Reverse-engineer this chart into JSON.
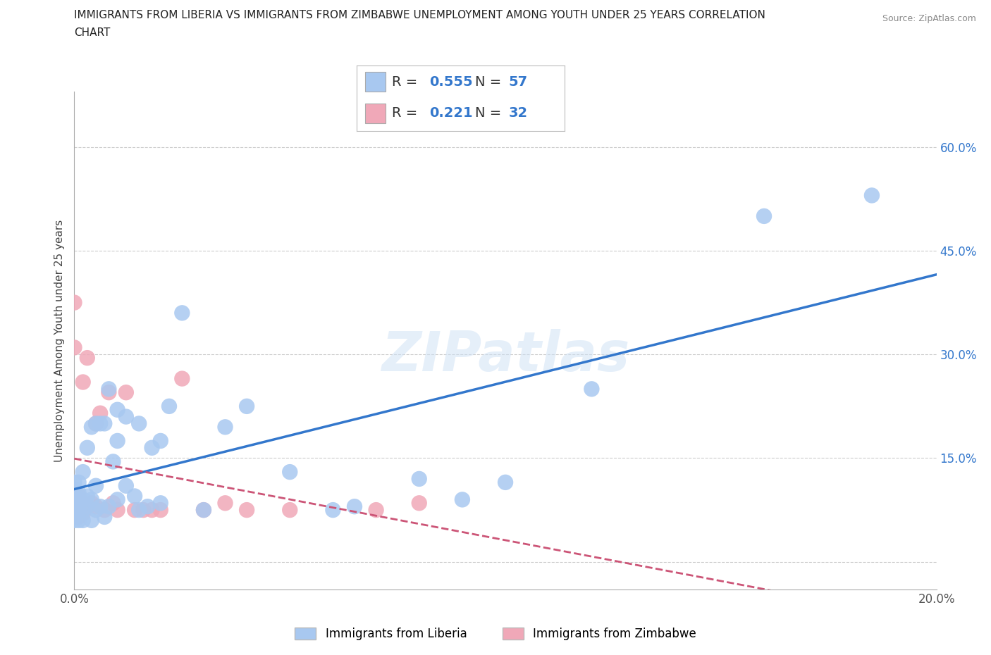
{
  "title_line1": "IMMIGRANTS FROM LIBERIA VS IMMIGRANTS FROM ZIMBABWE UNEMPLOYMENT AMONG YOUTH UNDER 25 YEARS CORRELATION",
  "title_line2": "CHART",
  "source": "Source: ZipAtlas.com",
  "ylabel": "Unemployment Among Youth under 25 years",
  "legend1_R": "0.555",
  "legend1_N": "57",
  "legend2_R": "0.221",
  "legend2_N": "32",
  "liberia_color": "#a8c8f0",
  "zimbabwe_color": "#f0a8b8",
  "liberia_line_color": "#3377cc",
  "zimbabwe_line_color": "#cc5577",
  "watermark": "ZIPatlas",
  "xlim": [
    0.0,
    0.2
  ],
  "ylim": [
    -0.04,
    0.68
  ],
  "xtick_vals": [
    0.0,
    0.05,
    0.1,
    0.15,
    0.2
  ],
  "xtick_labels": [
    "0.0%",
    "",
    "",
    "",
    "20.0%"
  ],
  "ytick_vals": [
    0.0,
    0.15,
    0.3,
    0.45,
    0.6
  ],
  "ytick_labels": [
    "",
    "15.0%",
    "30.0%",
    "45.0%",
    "60.0%"
  ],
  "liberia_x": [
    0.0,
    0.0,
    0.0,
    0.0,
    0.0,
    0.0,
    0.001,
    0.001,
    0.001,
    0.001,
    0.001,
    0.002,
    0.002,
    0.002,
    0.002,
    0.003,
    0.003,
    0.003,
    0.004,
    0.004,
    0.004,
    0.005,
    0.005,
    0.005,
    0.006,
    0.006,
    0.007,
    0.007,
    0.008,
    0.008,
    0.009,
    0.01,
    0.01,
    0.01,
    0.012,
    0.012,
    0.014,
    0.015,
    0.015,
    0.017,
    0.018,
    0.02,
    0.02,
    0.022,
    0.025,
    0.03,
    0.035,
    0.04,
    0.05,
    0.06,
    0.065,
    0.08,
    0.09,
    0.1,
    0.12,
    0.16,
    0.185
  ],
  "liberia_y": [
    0.06,
    0.075,
    0.085,
    0.095,
    0.105,
    0.115,
    0.06,
    0.075,
    0.085,
    0.1,
    0.115,
    0.06,
    0.075,
    0.09,
    0.13,
    0.08,
    0.095,
    0.165,
    0.06,
    0.09,
    0.195,
    0.075,
    0.11,
    0.2,
    0.08,
    0.2,
    0.065,
    0.2,
    0.08,
    0.25,
    0.145,
    0.09,
    0.175,
    0.22,
    0.11,
    0.21,
    0.095,
    0.075,
    0.2,
    0.08,
    0.165,
    0.085,
    0.175,
    0.225,
    0.36,
    0.075,
    0.195,
    0.225,
    0.13,
    0.075,
    0.08,
    0.12,
    0.09,
    0.115,
    0.25,
    0.5,
    0.53
  ],
  "zimbabwe_x": [
    0.0,
    0.0,
    0.0,
    0.0,
    0.0,
    0.001,
    0.001,
    0.001,
    0.002,
    0.002,
    0.003,
    0.003,
    0.004,
    0.005,
    0.005,
    0.006,
    0.007,
    0.008,
    0.009,
    0.01,
    0.012,
    0.014,
    0.016,
    0.018,
    0.02,
    0.025,
    0.03,
    0.035,
    0.04,
    0.05,
    0.07,
    0.08
  ],
  "zimbabwe_y": [
    0.07,
    0.08,
    0.095,
    0.31,
    0.375,
    0.065,
    0.08,
    0.095,
    0.07,
    0.26,
    0.08,
    0.295,
    0.085,
    0.08,
    0.2,
    0.215,
    0.075,
    0.245,
    0.085,
    0.075,
    0.245,
    0.075,
    0.075,
    0.075,
    0.075,
    0.265,
    0.075,
    0.085,
    0.075,
    0.075,
    0.075,
    0.085
  ]
}
